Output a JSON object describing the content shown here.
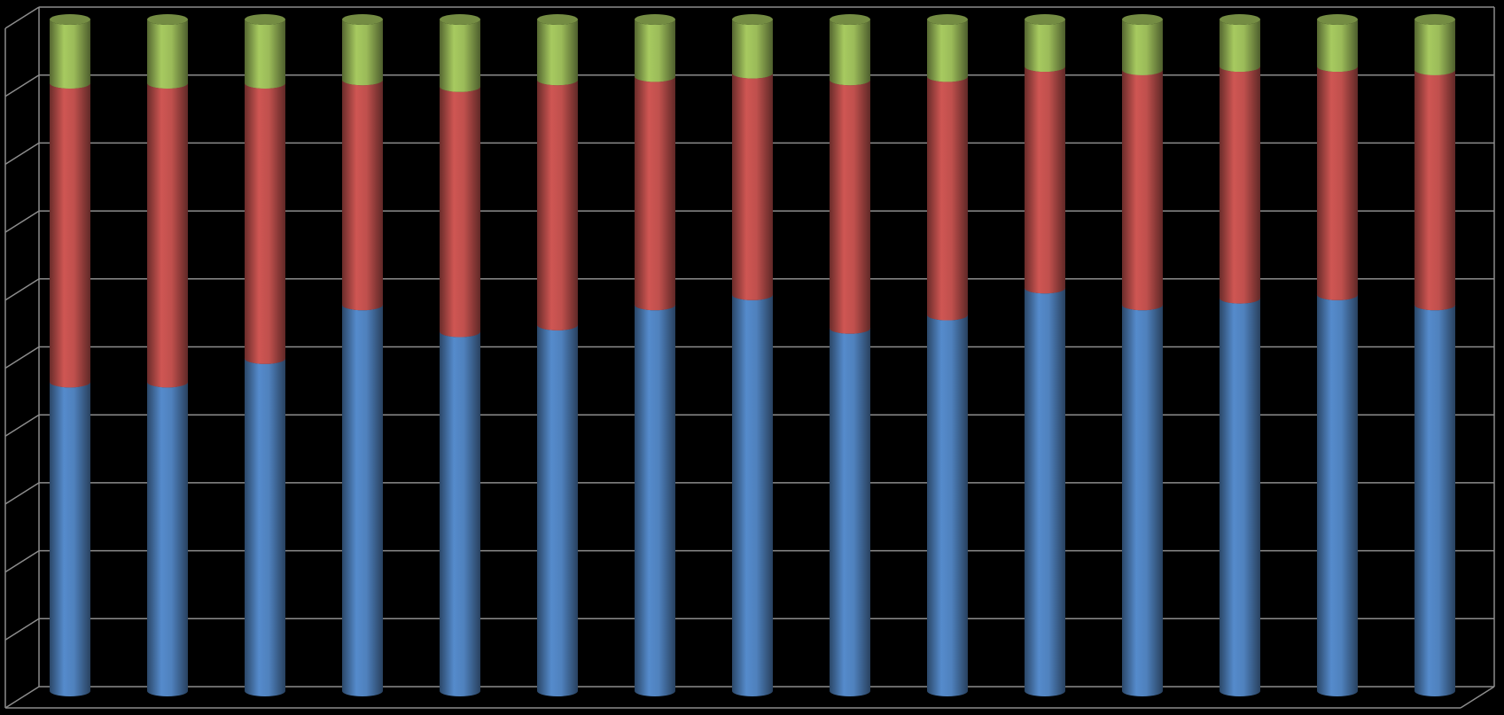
{
  "chart_data": {
    "type": "bar",
    "stacked": true,
    "percent_stacked": true,
    "three_d": true,
    "bar_shape": "cylinder",
    "background": "#000000",
    "gridlines": true,
    "legend": false,
    "title": "",
    "xlabel": "",
    "ylabel": "",
    "ylim": [
      0,
      100
    ],
    "categories": [
      "",
      "",
      "",
      "",
      "",
      "",
      "",
      "",
      "",
      "",
      "",
      "",
      "",
      "",
      ""
    ],
    "series": [
      {
        "color": "#4F81BD",
        "values": [
          46,
          46,
          49.5,
          57.5,
          53.5,
          54.5,
          57.5,
          59,
          54,
          56,
          60,
          57.5,
          58.5,
          59,
          57.5
        ]
      },
      {
        "color": "#C0504D",
        "values": [
          44.5,
          44.5,
          41,
          33.5,
          36.5,
          36.5,
          34,
          33,
          37,
          35.5,
          33,
          35,
          34.5,
          34,
          35
        ]
      },
      {
        "color": "#9BBB59",
        "values": [
          9.5,
          9.5,
          9.5,
          9,
          10,
          9,
          8.5,
          8,
          9,
          8.5,
          7,
          7.5,
          7,
          7,
          7.5
        ]
      }
    ]
  }
}
